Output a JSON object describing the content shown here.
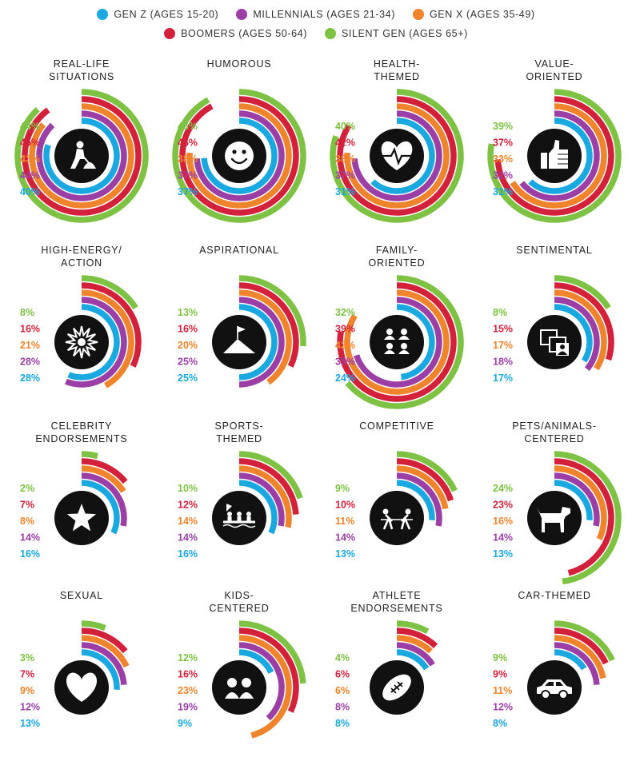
{
  "colors": {
    "gen_z": "#1aa8e0",
    "millennials": "#9b3fa6",
    "gen_x": "#f0842c",
    "boomers": "#d3213b",
    "silent": "#7dc242"
  },
  "legend": [
    {
      "label": "GEN Z (AGES 15-20)",
      "color": "#1aa8e0"
    },
    {
      "label": "MILLENNIALS (AGES 21-34)",
      "color": "#9b3fa6"
    },
    {
      "label": "GEN X (AGES 35-49)",
      "color": "#f0842c"
    },
    {
      "label": "BOOMERS (AGES 50-64)",
      "color": "#d3213b"
    },
    {
      "label": "SILENT GEN (AGES 65+)",
      "color": "#7dc242"
    }
  ],
  "chart_data": {
    "type": "radial-bar",
    "series": [
      {
        "name": "SILENT GEN (AGES 65+)",
        "color": "#7dc242"
      },
      {
        "name": "BOOMERS (AGES 50-64)",
        "color": "#d3213b"
      },
      {
        "name": "GEN X (AGES 35-49)",
        "color": "#f0842c"
      },
      {
        "name": "MILLENNIALS (AGES 21-34)",
        "color": "#9b3fa6"
      },
      {
        "name": "GEN Z (AGES 15-20)",
        "color": "#1aa8e0"
      }
    ],
    "value_order": [
      "silent",
      "boomers",
      "gen_x",
      "millennials",
      "gen_z"
    ],
    "panels": [
      {
        "title": [
          "REAL-LIFE",
          "SITUATIONS"
        ],
        "icon": "worker-icon",
        "values": [
          44,
          45,
          43,
          44,
          40
        ],
        "labels": [
          "44%",
          "45%",
          "43%",
          "44%",
          "40%"
        ]
      },
      {
        "title": [
          "HUMOROUS"
        ],
        "icon": "smiley-icon",
        "values": [
          46,
          46,
          38,
          37,
          37
        ],
        "labels": [
          "46%",
          "46%",
          "38%",
          "37%",
          "37%"
        ]
      },
      {
        "title": [
          "HEALTH-",
          "THEMED"
        ],
        "icon": "heartbeat-icon",
        "values": [
          40,
          42,
          38,
          37,
          31
        ],
        "labels": [
          "40%",
          "42%",
          "38%",
          "37%",
          "31%"
        ]
      },
      {
        "title": [
          "VALUE-",
          "ORIENTED"
        ],
        "icon": "thumbs-up-icon",
        "values": [
          39,
          37,
          33,
          32,
          31
        ],
        "labels": [
          "39%",
          "37%",
          "33%",
          "32%",
          "31%"
        ]
      },
      {
        "title": [
          "HIGH-ENERGY/",
          "ACTION"
        ],
        "icon": "burst-icon",
        "values": [
          8,
          16,
          21,
          28,
          28
        ],
        "labels": [
          "8%",
          "16%",
          "21%",
          "28%",
          "28%"
        ]
      },
      {
        "title": [
          "ASPIRATIONAL"
        ],
        "icon": "mountain-flag-icon",
        "values": [
          13,
          16,
          20,
          25,
          25
        ],
        "labels": [
          "13%",
          "16%",
          "20%",
          "25%",
          "25%"
        ]
      },
      {
        "title": [
          "FAMILY-",
          "ORIENTED"
        ],
        "icon": "family-icon",
        "values": [
          32,
          39,
          42,
          35,
          24
        ],
        "labels": [
          "32%",
          "39%",
          "42%",
          "35%",
          "24%"
        ]
      },
      {
        "title": [
          "SENTIMENTAL"
        ],
        "icon": "photos-icon",
        "values": [
          8,
          15,
          17,
          18,
          17
        ],
        "labels": [
          "8%",
          "15%",
          "17%",
          "18%",
          "17%"
        ]
      },
      {
        "title": [
          "CELEBRITY",
          "ENDORSEMENTS"
        ],
        "icon": "star-icon",
        "values": [
          2,
          7,
          8,
          14,
          16
        ],
        "labels": [
          "2%",
          "7%",
          "8%",
          "14%",
          "16%"
        ]
      },
      {
        "title": [
          "SPORTS-",
          "THEMED"
        ],
        "icon": "rowing-icon",
        "values": [
          10,
          12,
          14,
          14,
          16
        ],
        "labels": [
          "10%",
          "12%",
          "14%",
          "14%",
          "16%"
        ]
      },
      {
        "title": [
          "COMPETITIVE"
        ],
        "icon": "tug-of-war-icon",
        "values": [
          9,
          10,
          11,
          14,
          13
        ],
        "labels": [
          "9%",
          "10%",
          "11%",
          "14%",
          "13%"
        ]
      },
      {
        "title": [
          "PETS/ANIMALS-",
          "CENTERED"
        ],
        "icon": "dog-icon",
        "values": [
          24,
          23,
          16,
          14,
          13
        ],
        "labels": [
          "24%",
          "23%",
          "16%",
          "14%",
          "13%"
        ]
      },
      {
        "title": [
          "SEXUAL"
        ],
        "icon": "heart-icon",
        "values": [
          3,
          7,
          9,
          12,
          13
        ],
        "labels": [
          "3%",
          "7%",
          "9%",
          "12%",
          "13%"
        ]
      },
      {
        "title": [
          "KIDS-",
          "CENTERED"
        ],
        "icon": "kids-icon",
        "values": [
          12,
          16,
          23,
          19,
          9
        ],
        "labels": [
          "12%",
          "16%",
          "23%",
          "19%",
          "9%"
        ]
      },
      {
        "title": [
          "ATHLETE",
          "ENDORSEMENTS"
        ],
        "icon": "football-icon",
        "values": [
          4,
          6,
          6,
          8,
          8
        ],
        "labels": [
          "4%",
          "6%",
          "6%",
          "8%",
          "8%"
        ]
      },
      {
        "title": [
          "CAR-THEMED"
        ],
        "icon": "car-icon",
        "values": [
          9,
          9,
          11,
          12,
          8
        ],
        "labels": [
          "9%",
          "9%",
          "11%",
          "12%",
          "8%"
        ]
      }
    ]
  }
}
